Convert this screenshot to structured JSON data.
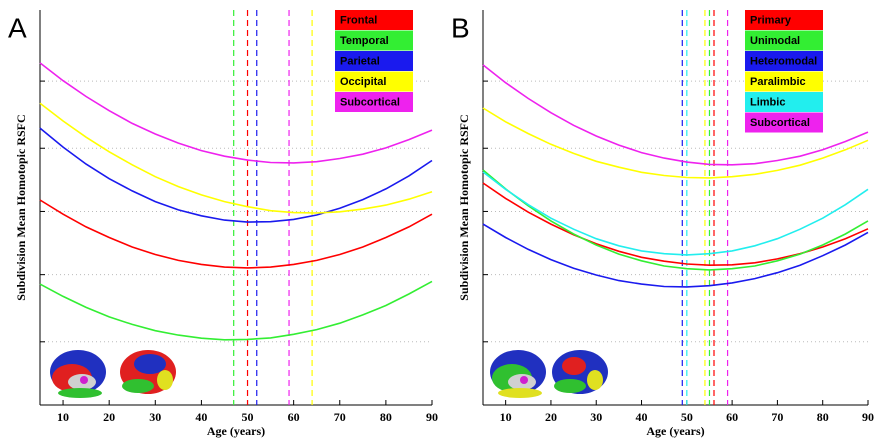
{
  "chart_data": [
    {
      "type": "line",
      "panel_label": "A",
      "x_label": "Age (years)",
      "y_label": "Subdivision Mean Homotopic RSFC",
      "x": [
        5,
        10,
        15,
        20,
        25,
        30,
        35,
        40,
        45,
        50,
        55,
        60,
        65,
        70,
        75,
        80,
        85,
        90
      ],
      "xlim": [
        5,
        90
      ],
      "xticks": [
        10,
        20,
        30,
        40,
        50,
        60,
        70,
        80,
        90
      ],
      "ylim": [
        0,
        1
      ],
      "yticks": [
        0.16,
        0.33,
        0.49,
        0.65,
        0.82
      ],
      "grid": true,
      "series": [
        {
          "name": "Frontal",
          "color": "#ff0000",
          "min_age": 50,
          "values": [
            0.519,
            0.483,
            0.451,
            0.424,
            0.4,
            0.381,
            0.366,
            0.356,
            0.349,
            0.347,
            0.349,
            0.356,
            0.366,
            0.381,
            0.4,
            0.424,
            0.451,
            0.483
          ]
        },
        {
          "name": "Temporal",
          "color": "#33ee33",
          "min_age": 47,
          "values": [
            0.306,
            0.275,
            0.247,
            0.223,
            0.204,
            0.188,
            0.177,
            0.169,
            0.165,
            0.166,
            0.17,
            0.179,
            0.191,
            0.207,
            0.228,
            0.252,
            0.281,
            0.313
          ]
        },
        {
          "name": "Parietal",
          "color": "#1a1aee",
          "min_age": 52,
          "values": [
            0.701,
            0.653,
            0.61,
            0.573,
            0.542,
            0.515,
            0.494,
            0.479,
            0.468,
            0.463,
            0.464,
            0.47,
            0.481,
            0.498,
            0.52,
            0.547,
            0.58,
            0.619
          ]
        },
        {
          "name": "Occipital",
          "color": "#ffff00",
          "min_age": 64,
          "values": [
            0.764,
            0.719,
            0.678,
            0.641,
            0.608,
            0.578,
            0.553,
            0.532,
            0.515,
            0.502,
            0.492,
            0.487,
            0.486,
            0.489,
            0.496,
            0.506,
            0.521,
            0.54
          ]
        },
        {
          "name": "Subcortical",
          "color": "#ee22ee",
          "min_age": 59,
          "values": [
            0.866,
            0.821,
            0.781,
            0.745,
            0.713,
            0.686,
            0.663,
            0.644,
            0.63,
            0.62,
            0.614,
            0.613,
            0.616,
            0.624,
            0.635,
            0.651,
            0.672,
            0.696
          ]
        }
      ]
    },
    {
      "type": "line",
      "panel_label": "B",
      "x_label": "Age (years)",
      "y_label": "Subdivision Mean Homotopic RSFC",
      "x": [
        5,
        10,
        15,
        20,
        25,
        30,
        35,
        40,
        45,
        50,
        55,
        60,
        65,
        70,
        75,
        80,
        85,
        90
      ],
      "xlim": [
        5,
        90
      ],
      "xticks": [
        10,
        20,
        30,
        40,
        50,
        60,
        70,
        80,
        90
      ],
      "ylim": [
        0,
        1
      ],
      "yticks": [
        0.16,
        0.33,
        0.49,
        0.65,
        0.82
      ],
      "grid": true,
      "series": [
        {
          "name": "Primary",
          "color": "#ff0000",
          "min_age": 56,
          "values": [
            0.562,
            0.523,
            0.488,
            0.458,
            0.431,
            0.408,
            0.389,
            0.374,
            0.364,
            0.357,
            0.354,
            0.355,
            0.36,
            0.37,
            0.383,
            0.4,
            0.421,
            0.446
          ]
        },
        {
          "name": "Unimodal",
          "color": "#33ee33",
          "min_age": 55,
          "values": [
            0.595,
            0.547,
            0.504,
            0.466,
            0.433,
            0.405,
            0.382,
            0.365,
            0.352,
            0.345,
            0.342,
            0.345,
            0.352,
            0.365,
            0.382,
            0.405,
            0.433,
            0.466
          ]
        },
        {
          "name": "Heteromodal",
          "color": "#1a1aee",
          "min_age": 49,
          "values": [
            0.458,
            0.424,
            0.394,
            0.368,
            0.346,
            0.329,
            0.315,
            0.306,
            0.3,
            0.299,
            0.302,
            0.309,
            0.32,
            0.335,
            0.354,
            0.378,
            0.405,
            0.437
          ]
        },
        {
          "name": "Paralimbic",
          "color": "#ffff00",
          "min_age": 54,
          "values": [
            0.752,
            0.717,
            0.687,
            0.66,
            0.637,
            0.617,
            0.602,
            0.589,
            0.581,
            0.576,
            0.575,
            0.578,
            0.584,
            0.594,
            0.607,
            0.625,
            0.646,
            0.67
          ]
        },
        {
          "name": "Limbic",
          "color": "#22eeee",
          "min_age": 50,
          "values": [
            0.59,
            0.546,
            0.507,
            0.473,
            0.445,
            0.421,
            0.403,
            0.39,
            0.383,
            0.38,
            0.383,
            0.39,
            0.403,
            0.421,
            0.445,
            0.473,
            0.507,
            0.546
          ]
        },
        {
          "name": "Subcortical",
          "color": "#ee22ee",
          "min_age": 59,
          "values": [
            0.861,
            0.816,
            0.776,
            0.74,
            0.708,
            0.681,
            0.658,
            0.639,
            0.625,
            0.615,
            0.609,
            0.608,
            0.611,
            0.619,
            0.63,
            0.646,
            0.667,
            0.691
          ]
        }
      ]
    }
  ]
}
